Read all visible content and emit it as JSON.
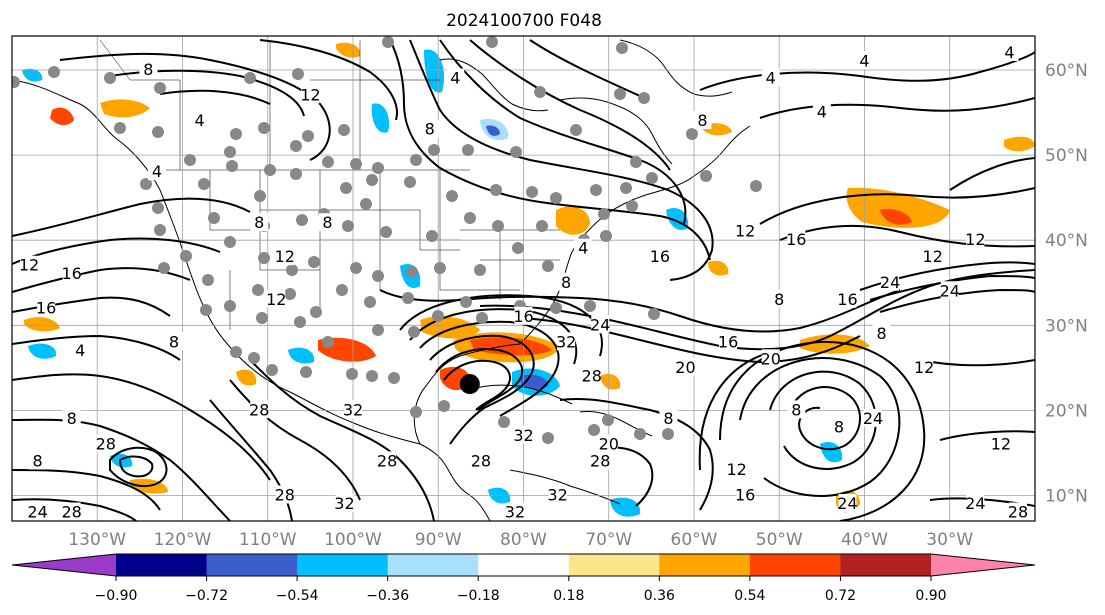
{
  "title": "2024100700 F048",
  "map": {
    "projection": "PlateCarree",
    "extent_lon": [
      -140,
      -20
    ],
    "extent_lat": [
      7,
      64
    ],
    "grid_lon": [
      -140,
      -130,
      -120,
      -110,
      -100,
      -90,
      -80,
      -70,
      -60,
      -50,
      -40,
      -30,
      -20
    ],
    "grid_lat": [
      10,
      20,
      30,
      40,
      50,
      60
    ],
    "lon_labels": [
      {
        "lon": -130,
        "text": "130°W"
      },
      {
        "lon": -120,
        "text": "120°W"
      },
      {
        "lon": -110,
        "text": "110°W"
      },
      {
        "lon": -100,
        "text": "100°W"
      },
      {
        "lon": -90,
        "text": "90°W"
      },
      {
        "lon": -80,
        "text": "80°W"
      },
      {
        "lon": -70,
        "text": "70°W"
      },
      {
        "lon": -60,
        "text": "60°W"
      },
      {
        "lon": -50,
        "text": "50°W"
      },
      {
        "lon": -40,
        "text": "40°W"
      },
      {
        "lon": -30,
        "text": "30°W"
      }
    ],
    "lat_labels": [
      {
        "lat": 60,
        "text": "60°N"
      },
      {
        "lat": 50,
        "text": "50°N"
      },
      {
        "lat": 40,
        "text": "40°N"
      },
      {
        "lat": 30,
        "text": "30°N"
      },
      {
        "lat": 20,
        "text": "20°N"
      },
      {
        "lat": 10,
        "text": "10°N"
      }
    ],
    "label_color": "#808080",
    "grid_color": "#a0a0a0",
    "station_color": "#888888",
    "hurricane_center": {
      "lon": -86.3,
      "lat": 23.1
    },
    "contour_labels": [
      {
        "lon": -124,
        "lat": 60,
        "text": "8"
      },
      {
        "lon": -105,
        "lat": 57,
        "text": "12"
      },
      {
        "lon": -118,
        "lat": 54,
        "text": "4"
      },
      {
        "lon": -123,
        "lat": 48,
        "text": "4"
      },
      {
        "lon": -138,
        "lat": 37,
        "text": "12"
      },
      {
        "lon": -133,
        "lat": 36,
        "text": "16"
      },
      {
        "lon": -136,
        "lat": 32,
        "text": "16"
      },
      {
        "lon": -132,
        "lat": 27,
        "text": "4"
      },
      {
        "lon": -121,
        "lat": 28,
        "text": "8"
      },
      {
        "lon": -133,
        "lat": 19,
        "text": "8"
      },
      {
        "lon": -129,
        "lat": 16,
        "text": "28"
      },
      {
        "lon": -137,
        "lat": 14,
        "text": "8"
      },
      {
        "lon": -133,
        "lat": 8,
        "text": "28"
      },
      {
        "lon": -137,
        "lat": 8,
        "text": "24"
      },
      {
        "lon": -111,
        "lat": 42,
        "text": "8"
      },
      {
        "lon": -108,
        "lat": 38,
        "text": "12"
      },
      {
        "lon": -109,
        "lat": 33,
        "text": "12"
      },
      {
        "lon": -103,
        "lat": 42,
        "text": "8"
      },
      {
        "lon": -111,
        "lat": 20,
        "text": "28"
      },
      {
        "lon": -100,
        "lat": 20,
        "text": "32"
      },
      {
        "lon": -96,
        "lat": 14,
        "text": "28"
      },
      {
        "lon": -108,
        "lat": 10,
        "text": "28"
      },
      {
        "lon": -101,
        "lat": 9,
        "text": "32"
      },
      {
        "lon": -85,
        "lat": 14,
        "text": "28"
      },
      {
        "lon": -80,
        "lat": 17,
        "text": "32"
      },
      {
        "lon": -81,
        "lat": 8,
        "text": "32"
      },
      {
        "lon": -76,
        "lat": 10,
        "text": "32"
      },
      {
        "lon": -75,
        "lat": 28,
        "text": "32"
      },
      {
        "lon": -72,
        "lat": 24,
        "text": "28"
      },
      {
        "lon": -80,
        "lat": 31,
        "text": "16"
      },
      {
        "lon": -75,
        "lat": 35,
        "text": "8"
      },
      {
        "lon": -73,
        "lat": 39,
        "text": "4"
      },
      {
        "lon": -64,
        "lat": 38,
        "text": "16"
      },
      {
        "lon": -71,
        "lat": 30,
        "text": "24"
      },
      {
        "lon": -71,
        "lat": 14,
        "text": "28"
      },
      {
        "lon": -70,
        "lat": 16,
        "text": "20"
      },
      {
        "lon": -63,
        "lat": 19,
        "text": "8"
      },
      {
        "lon": -91,
        "lat": 53,
        "text": "8"
      },
      {
        "lon": -88,
        "lat": 59,
        "text": "4"
      },
      {
        "lon": -59,
        "lat": 54,
        "text": "8"
      },
      {
        "lon": -51,
        "lat": 59,
        "text": "4"
      },
      {
        "lon": -45,
        "lat": 55,
        "text": "4"
      },
      {
        "lon": -40,
        "lat": 61,
        "text": "4"
      },
      {
        "lon": -23,
        "lat": 62,
        "text": "4"
      },
      {
        "lon": -54,
        "lat": 41,
        "text": "12"
      },
      {
        "lon": -48,
        "lat": 40,
        "text": "16"
      },
      {
        "lon": -27,
        "lat": 40,
        "text": "12"
      },
      {
        "lon": -32,
        "lat": 38,
        "text": "12"
      },
      {
        "lon": -30,
        "lat": 34,
        "text": "24"
      },
      {
        "lon": -37,
        "lat": 35,
        "text": "24"
      },
      {
        "lon": -42,
        "lat": 33,
        "text": "16"
      },
      {
        "lon": -50,
        "lat": 33,
        "text": "8"
      },
      {
        "lon": -56,
        "lat": 28,
        "text": "16"
      },
      {
        "lon": -61,
        "lat": 25,
        "text": "20"
      },
      {
        "lon": -51,
        "lat": 26,
        "text": "20"
      },
      {
        "lon": -38,
        "lat": 29,
        "text": "8"
      },
      {
        "lon": -33,
        "lat": 25,
        "text": "12"
      },
      {
        "lon": -48,
        "lat": 20,
        "text": "8"
      },
      {
        "lon": -43,
        "lat": 18,
        "text": "8"
      },
      {
        "lon": -39,
        "lat": 19,
        "text": "24"
      },
      {
        "lon": -24,
        "lat": 16,
        "text": "12"
      },
      {
        "lon": -42,
        "lat": 9,
        "text": "24"
      },
      {
        "lon": -55,
        "lat": 13,
        "text": "12"
      },
      {
        "lon": -54,
        "lat": 10,
        "text": "16"
      },
      {
        "lon": -27,
        "lat": 9,
        "text": "24"
      },
      {
        "lon": -22,
        "lat": 8,
        "text": "28"
      }
    ]
  },
  "colorbar": {
    "extend": "both",
    "ticks": [
      "−0.90",
      "−0.72",
      "−0.54",
      "−0.36",
      "−0.18",
      "0.18",
      "0.36",
      "0.54",
      "0.72",
      "0.90"
    ],
    "colors": [
      "#9a3cc8",
      "#00008b",
      "#3a5fcd",
      "#00bfff",
      "#a7e0fb",
      "#ffffff",
      "#fde68a",
      "#ffa500",
      "#ff4500",
      "#b22222",
      "#ff82ab"
    ]
  }
}
